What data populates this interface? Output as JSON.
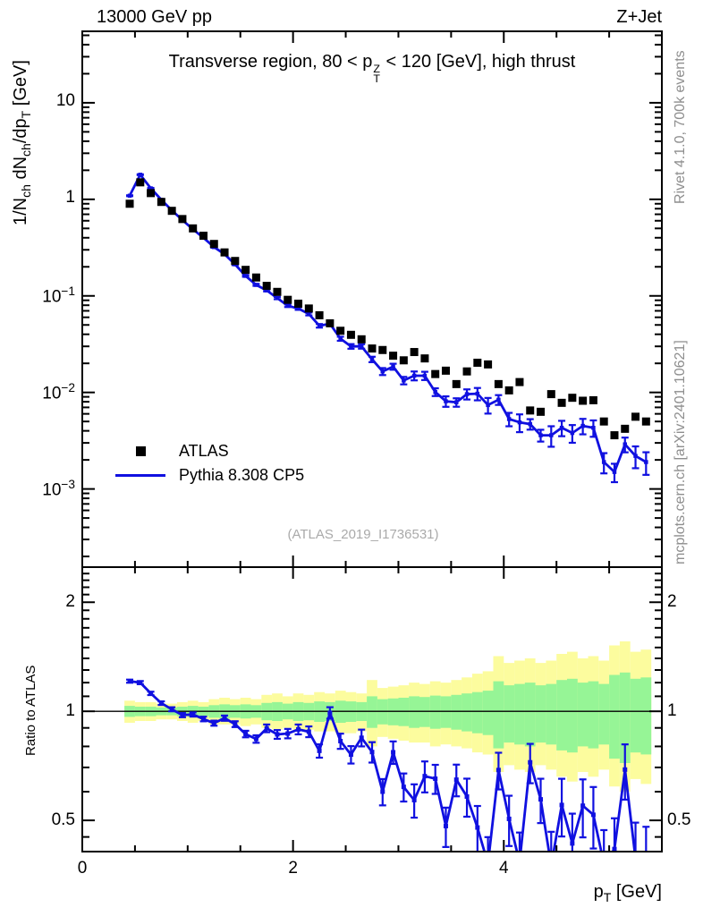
{
  "header": {
    "left": "13000 GeV pp",
    "right": "Z+Jet"
  },
  "panel_title": {
    "t1": "Transverse region, 80 < p",
    "sup": "Z",
    "sub": "T",
    "t2": " < 120 [GeV], high thrust"
  },
  "watermark": "(ATLAS_2019_I1736531)",
  "side_notes": {
    "top_right": "Rivet 4.1.0,  700k events",
    "bottom_right": "mcplots.cern.ch [arXiv:2401.10621]"
  },
  "legend": [
    {
      "label": "ATLAS",
      "marker": "filled-square",
      "color": "#000000"
    },
    {
      "label": "Pythia 8.308 CP5",
      "marker": "line",
      "color": "#1010e0"
    }
  ],
  "colors": {
    "pythia_blue": "#1010e0",
    "data_black": "#000000",
    "band_yellow": "#fcfc9e",
    "band_green": "#96f596",
    "note_gray": "#8e8e8e",
    "watermark_gray": "#aaaaaa"
  },
  "axes": {
    "x": {
      "title_p": "p",
      "title_sub": "T",
      "title_suffix": " [GeV]",
      "min": 0,
      "max": 5.5,
      "minor_step": 0.5,
      "tick_labels": [
        {
          "v": 0,
          "base": "0"
        },
        {
          "v": 2,
          "base": "2"
        },
        {
          "v": 4,
          "base": "4"
        }
      ]
    },
    "y_main": {
      "title_parts": {
        "p1": "1/N",
        "s1": "ch",
        "p2": " dN",
        "s2": "ch",
        "p3": "/dp",
        "s3": "T",
        "p4": " [GeV]"
      },
      "scale": "log",
      "ticks": [
        {
          "v": 10,
          "base": "10"
        },
        {
          "v": 1,
          "base": "1"
        },
        {
          "v": 0.1,
          "base": "10",
          "exp": "−1"
        },
        {
          "v": 0.01,
          "base": "10",
          "exp": "−2"
        },
        {
          "v": 0.001,
          "base": "10",
          "exp": "−3"
        }
      ]
    },
    "y_ratio": {
      "title": "Ratio to ATLAS",
      "scale": "log",
      "ticks": [
        {
          "v": 2,
          "base": "2"
        },
        {
          "v": 1,
          "base": "1"
        },
        {
          "v": 0.5,
          "base": "0.5"
        }
      ]
    }
  },
  "chart_data": [
    {
      "type": "line+scatter",
      "title": "Transverse region, 80 < pT(Z) < 120 [GeV], high thrust",
      "xlabel": "pT [GeV]",
      "ylabel": "1/Nch dNch/dpT [GeV]",
      "xscale": "linear",
      "yscale": "log",
      "xlim": [
        0,
        5.5
      ],
      "ylim": [
        0.000155,
        55
      ],
      "grid": false,
      "legend_position": "lower-left-inside",
      "x": [
        0.45,
        0.55,
        0.65,
        0.75,
        0.85,
        0.95,
        1.05,
        1.15,
        1.25,
        1.35,
        1.45,
        1.55,
        1.65,
        1.75,
        1.85,
        1.95,
        2.05,
        2.15,
        2.25,
        2.35,
        2.45,
        2.55,
        2.65,
        2.75,
        2.85,
        2.95,
        3.05,
        3.15,
        3.25,
        3.35,
        3.45,
        3.55,
        3.65,
        3.75,
        3.85,
        3.95,
        4.05,
        4.15,
        4.25,
        4.35,
        4.45,
        4.55,
        4.65,
        4.75,
        4.85,
        4.95,
        5.05,
        5.15,
        5.25,
        5.35
      ],
      "series": [
        {
          "name": "ATLAS",
          "type": "scatter",
          "marker": "filled-square",
          "color": "#000000",
          "values": [
            0.9,
            1.5,
            1.16,
            0.94,
            0.76,
            0.625,
            0.5,
            0.42,
            0.345,
            0.282,
            0.23,
            0.186,
            0.155,
            0.127,
            0.11,
            0.091,
            0.083,
            0.074,
            0.063,
            0.052,
            0.0435,
            0.0395,
            0.0355,
            0.0285,
            0.0275,
            0.024,
            0.0215,
            0.0262,
            0.0225,
            0.0155,
            0.0168,
            0.0122,
            0.0165,
            0.0203,
            0.0195,
            0.0122,
            0.0105,
            0.0128,
            0.0065,
            0.0063,
            0.0096,
            0.0078,
            0.0088,
            0.0082,
            0.0083,
            0.005,
            0.0036,
            0.0042,
            0.0056,
            0.005
          ]
        },
        {
          "name": "Pythia 8.308 CP5",
          "type": "line+markers",
          "marker": "small-square",
          "color": "#1010e0",
          "values": [
            1.09,
            1.8,
            1.3,
            0.99,
            0.77,
            0.61,
            0.49,
            0.4,
            0.32,
            0.27,
            0.212,
            0.161,
            0.13,
            0.114,
            0.095,
            0.079,
            0.074,
            0.065,
            0.049,
            0.0515,
            0.036,
            0.03,
            0.03,
            0.022,
            0.0165,
            0.0185,
            0.0133,
            0.0149,
            0.0149,
            0.0101,
            0.0081,
            0.0079,
            0.0096,
            0.0097,
            0.0074,
            0.0084,
            0.0053,
            0.0049,
            0.0047,
            0.0036,
            0.0036,
            0.0043,
            0.0038,
            0.0045,
            0.0043,
            0.0019,
            0.0015,
            0.0029,
            0.0022,
            0.0019
          ]
        }
      ]
    },
    {
      "type": "ratio",
      "title": "Ratio to ATLAS",
      "values_rule": "pythia_values / atlas_values (per bin)",
      "xlim": [
        0,
        5.5
      ],
      "ylim": [
        0.41,
        2.5
      ],
      "yscale": "log",
      "reference_line": 1,
      "yerr": [
        0.012,
        0.012,
        0.012,
        0.012,
        0.013,
        0.013,
        0.013,
        0.014,
        0.015,
        0.016,
        0.017,
        0.018,
        0.02,
        0.022,
        0.024,
        0.026,
        0.028,
        0.03,
        0.033,
        0.036,
        0.04,
        0.042,
        0.045,
        0.05,
        0.05,
        0.055,
        0.055,
        0.06,
        0.065,
        0.06,
        0.06,
        0.065,
        0.07,
        0.07,
        0.07,
        0.08,
        0.08,
        0.08,
        0.09,
        0.08,
        0.09,
        0.1,
        0.09,
        0.1,
        0.1,
        0.09,
        0.09,
        0.12,
        0.1,
        0.1
      ],
      "bands": {
        "bin_width": 0.1,
        "yellow_color": "#fcfc9e",
        "green_color": "#96f596",
        "yellow_hi": [
          1.07,
          1.06,
          1.06,
          1.05,
          1.05,
          1.06,
          1.07,
          1.06,
          1.08,
          1.09,
          1.08,
          1.09,
          1.08,
          1.11,
          1.12,
          1.1,
          1.12,
          1.11,
          1.13,
          1.12,
          1.14,
          1.13,
          1.12,
          1.22,
          1.16,
          1.17,
          1.18,
          1.2,
          1.19,
          1.21,
          1.2,
          1.22,
          1.24,
          1.27,
          1.29,
          1.42,
          1.36,
          1.38,
          1.4,
          1.36,
          1.38,
          1.44,
          1.46,
          1.4,
          1.42,
          1.38,
          1.52,
          1.56,
          1.46,
          1.48
        ],
        "yellow_lo": [
          0.93,
          0.94,
          0.94,
          0.95,
          0.95,
          0.94,
          0.93,
          0.94,
          0.92,
          0.92,
          0.92,
          0.91,
          0.92,
          0.9,
          0.89,
          0.9,
          0.89,
          0.89,
          0.88,
          0.88,
          0.87,
          0.87,
          0.88,
          0.8,
          0.85,
          0.84,
          0.83,
          0.82,
          0.82,
          0.8,
          0.81,
          0.8,
          0.79,
          0.77,
          0.76,
          0.68,
          0.71,
          0.69,
          0.68,
          0.71,
          0.69,
          0.66,
          0.64,
          0.68,
          0.66,
          0.69,
          0.62,
          0.6,
          0.65,
          0.63
        ],
        "green_hi": [
          1.035,
          1.03,
          1.03,
          1.025,
          1.025,
          1.03,
          1.035,
          1.03,
          1.04,
          1.045,
          1.04,
          1.045,
          1.04,
          1.055,
          1.06,
          1.05,
          1.06,
          1.055,
          1.065,
          1.06,
          1.07,
          1.065,
          1.06,
          1.1,
          1.08,
          1.085,
          1.09,
          1.1,
          1.095,
          1.105,
          1.1,
          1.11,
          1.12,
          1.13,
          1.14,
          1.21,
          1.18,
          1.19,
          1.2,
          1.18,
          1.19,
          1.22,
          1.23,
          1.2,
          1.21,
          1.19,
          1.26,
          1.28,
          1.23,
          1.24
        ],
        "green_lo": [
          0.965,
          0.97,
          0.97,
          0.975,
          0.975,
          0.97,
          0.965,
          0.97,
          0.96,
          0.955,
          0.96,
          0.955,
          0.96,
          0.945,
          0.94,
          0.95,
          0.94,
          0.945,
          0.935,
          0.94,
          0.93,
          0.935,
          0.94,
          0.9,
          0.92,
          0.915,
          0.91,
          0.9,
          0.905,
          0.895,
          0.9,
          0.89,
          0.88,
          0.87,
          0.86,
          0.79,
          0.82,
          0.81,
          0.8,
          0.82,
          0.81,
          0.78,
          0.77,
          0.8,
          0.79,
          0.81,
          0.74,
          0.72,
          0.77,
          0.76
        ]
      }
    }
  ]
}
